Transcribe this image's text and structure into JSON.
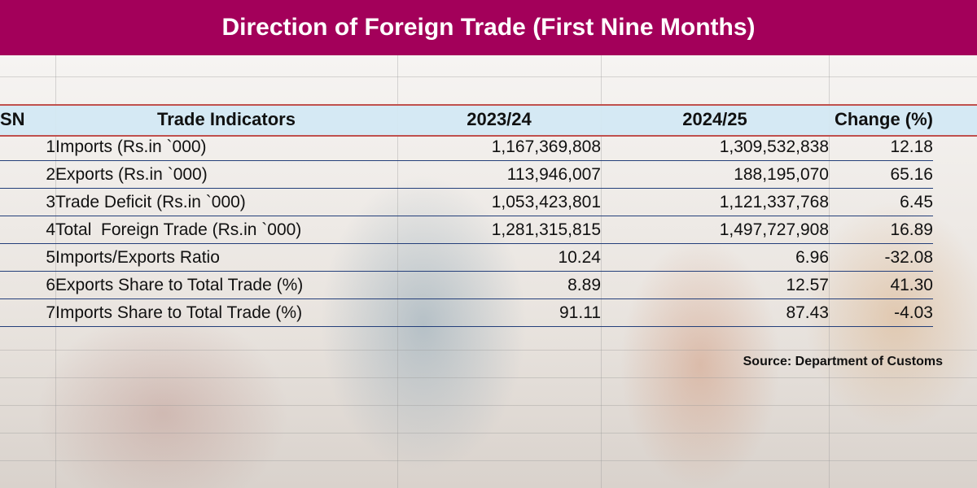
{
  "title": "Direction of Foreign Trade (First Nine Months)",
  "source": "Source: Department of Customs",
  "colors": {
    "title_bar": "#a3005a",
    "header_band": "#d2e8f4",
    "header_rule": "#c0504d",
    "row_rule": "#243f7a"
  },
  "chart_data": {
    "type": "table",
    "title": "Direction of Foreign Trade (First Nine Months)",
    "columns": [
      "SN",
      "Trade Indicators",
      "2023/24",
      "2024/25",
      "Change (%)"
    ],
    "rows": [
      {
        "sn": "1",
        "indicator": "Imports (Rs.in `000)",
        "y2023_24": "1,167,369,808",
        "y2024_25": "1,309,532,838",
        "change": "12.18"
      },
      {
        "sn": "2",
        "indicator": "Exports (Rs.in `000)",
        "y2023_24": "113,946,007",
        "y2024_25": "188,195,070",
        "change": "65.16"
      },
      {
        "sn": "3",
        "indicator": "Trade Deficit (Rs.in `000)",
        "y2023_24": "1,053,423,801",
        "y2024_25": "1,121,337,768",
        "change": "6.45"
      },
      {
        "sn": "4",
        "indicator": "Total  Foreign Trade (Rs.in `000)",
        "y2023_24": "1,281,315,815",
        "y2024_25": "1,497,727,908",
        "change": "16.89"
      },
      {
        "sn": "5",
        "indicator": "Imports/Exports Ratio",
        "y2023_24": "10.24",
        "y2024_25": "6.96",
        "change": "-32.08"
      },
      {
        "sn": "6",
        "indicator": "Exports Share to Total Trade (%)",
        "y2023_24": "8.89",
        "y2024_25": "12.57",
        "change": "41.30"
      },
      {
        "sn": "7",
        "indicator": "Imports Share to Total Trade (%)",
        "y2023_24": "91.11",
        "y2024_25": "87.43",
        "change": "-4.03"
      }
    ]
  }
}
